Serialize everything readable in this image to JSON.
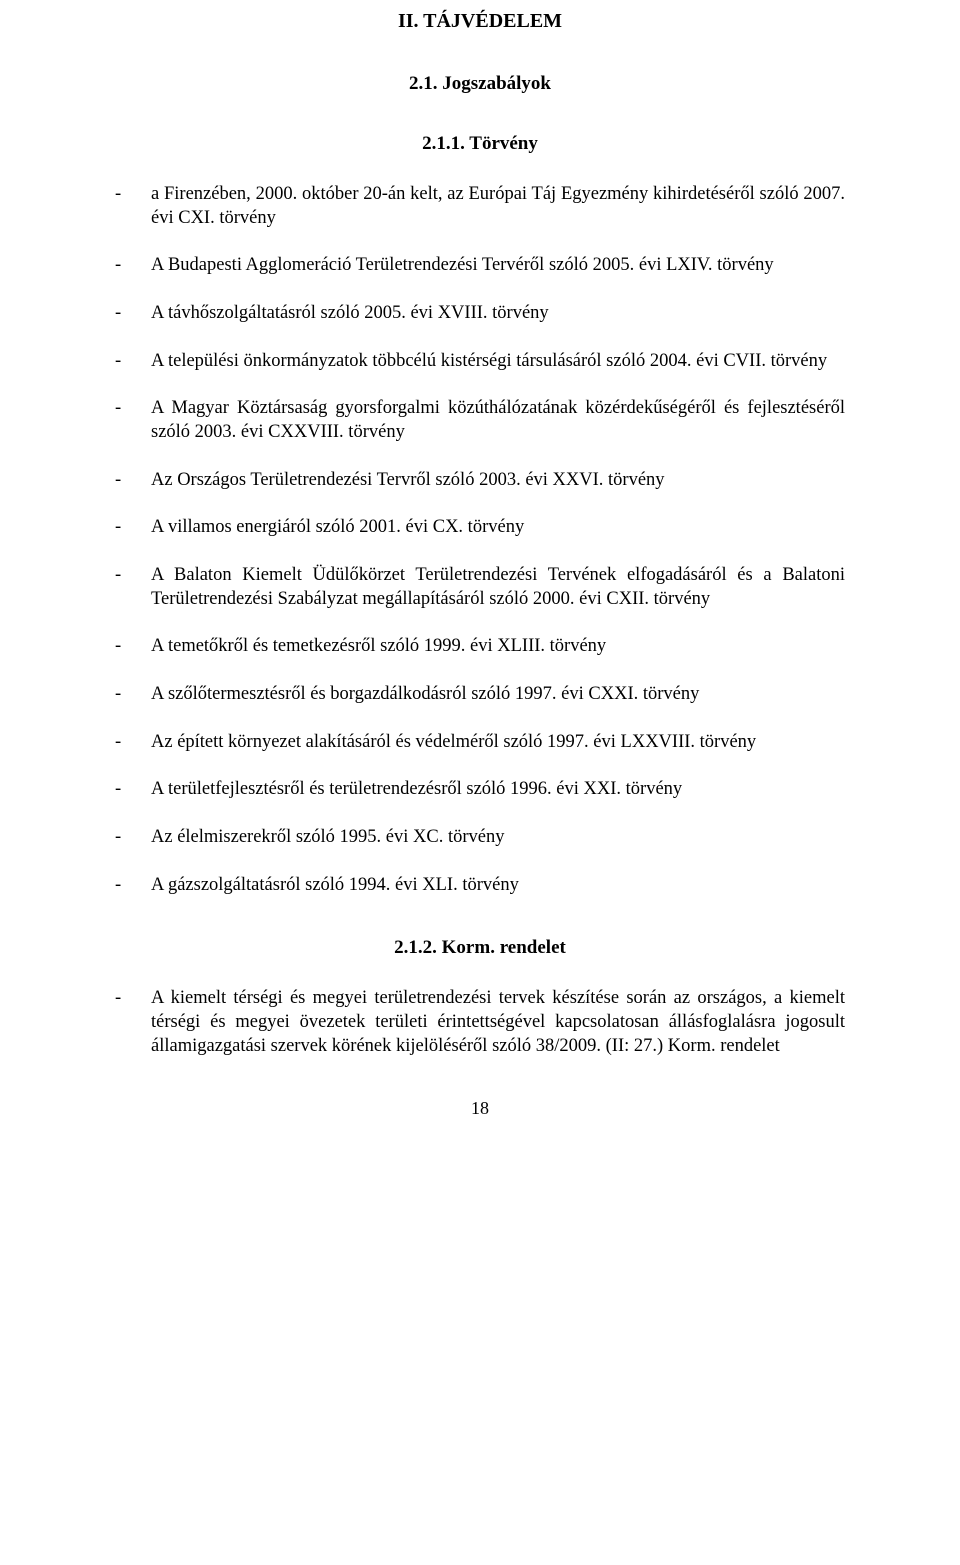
{
  "title": "II. TÁJVÉDELEM",
  "section_2_1": "2.1. Jogszabályok",
  "subsection_2_1_1": "2.1.1. Törvény",
  "laws_2_1_1": [
    "a Firenzében, 2000. október 20-án kelt, az Európai Táj Egyezmény kihirdetéséről szóló 2007. évi CXI. törvény",
    "A Budapesti Agglomeráció Területrendezési Tervéről szóló 2005. évi LXIV. törvény",
    "A távhőszolgáltatásról szóló 2005. évi XVIII. törvény",
    "A települési önkormányzatok többcélú kistérségi társulásáról szóló 2004. évi CVII. törvény",
    "A Magyar Köztársaság gyorsforgalmi közúthálózatának közérdekűségéről és fejlesztéséről szóló 2003. évi CXXVIII. törvény",
    "Az Országos Területrendezési Tervről szóló 2003. évi XXVI. törvény",
    "A villamos energiáról szóló 2001. évi CX. törvény",
    "A Balaton Kiemelt Üdülőkörzet Területrendezési Tervének elfogadásáról és a Balatoni Területrendezési Szabályzat megállapításáról szóló 2000. évi CXII. törvény",
    "A temetőkről és temetkezésről szóló 1999. évi XLIII. törvény",
    "A szőlőtermesztésről és borgazdálkodásról szóló 1997. évi CXXI. törvény",
    "Az épített környezet alakításáról és védelméről szóló 1997. évi LXXVIII. törvény",
    " A területfejlesztésről és területrendezésről szóló 1996. évi XXI. törvény",
    "Az élelmiszerekről szóló 1995. évi XC. törvény",
    "A gázszolgáltatásról szóló 1994. évi XLI. törvény"
  ],
  "subsection_2_1_2": "2.1.2. Korm. rendelet",
  "laws_2_1_2": [
    "A kiemelt térségi és megyei területrendezési tervek készítése során az országos, a kiemelt térségi és megyei övezetek területi érintettségével kapcsolatosan állásfoglalásra jogosult államigazgatási szervek körének kijelöléséről szóló 38/2009. (II: 27.) Korm. rendelet"
  ],
  "page_number": "18",
  "colors": {
    "text": "#000000",
    "background": "#ffffff"
  },
  "typography": {
    "font_family": "Times New Roman",
    "title_fontsize": 20,
    "heading_fontsize": 19,
    "body_fontsize": 18.5
  }
}
